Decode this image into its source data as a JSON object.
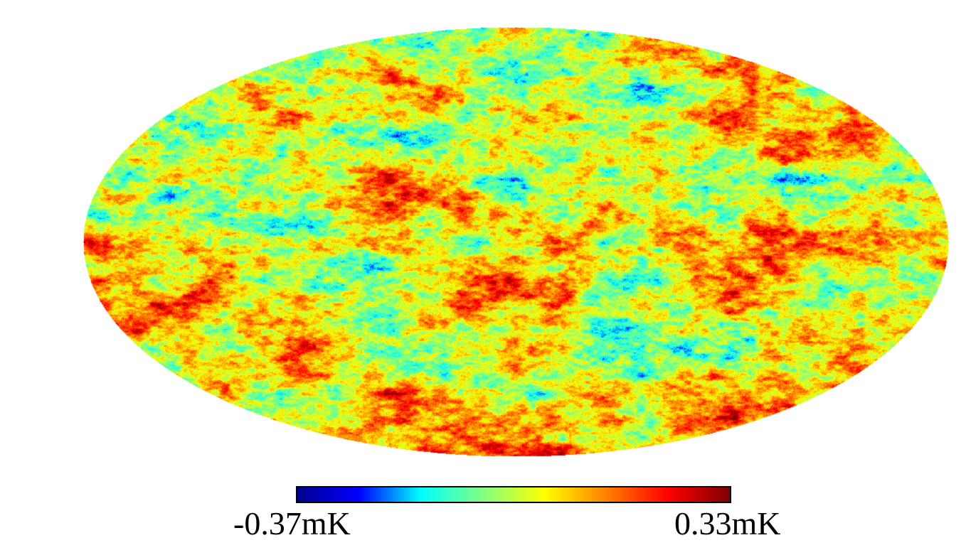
{
  "map": {
    "projection": "mollweide",
    "colormap": "jet",
    "colormap_stops": [
      "#00008f",
      "#0000ff",
      "#00ffff",
      "#80ff80",
      "#ffff00",
      "#ff8000",
      "#ff0000",
      "#800000"
    ],
    "background": "#ffffff"
  },
  "colorbar": {
    "min_label": "-0.37mK",
    "max_label": "0.33mK",
    "min_value": -0.37,
    "max_value": 0.33,
    "unit": "mK"
  }
}
